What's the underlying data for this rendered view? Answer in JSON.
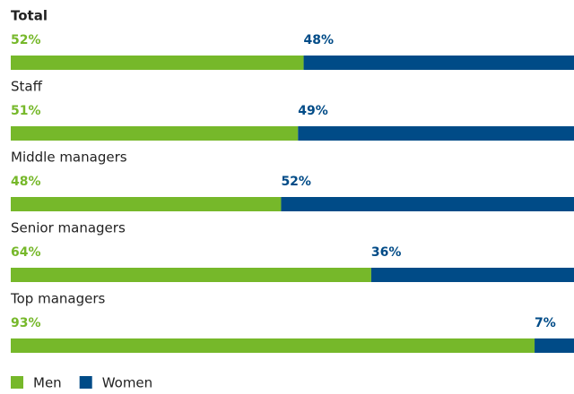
{
  "chart_data": {
    "type": "stacked-bar-100",
    "categories": [
      "Total",
      "Staff",
      "Middle managers",
      "Senior managers",
      "Top managers"
    ],
    "series": [
      {
        "name": "Men",
        "color": "#76b82a",
        "values": [
          52,
          51,
          48,
          64,
          93
        ],
        "value_labels": [
          "52%",
          "51%",
          "48%",
          "64%",
          "93%"
        ]
      },
      {
        "name": "Women",
        "color": "#004b87",
        "values": [
          48,
          49,
          52,
          36,
          7
        ],
        "value_labels": [
          "48%",
          "49%",
          "52%",
          "36%",
          "7%"
        ]
      }
    ]
  }
}
